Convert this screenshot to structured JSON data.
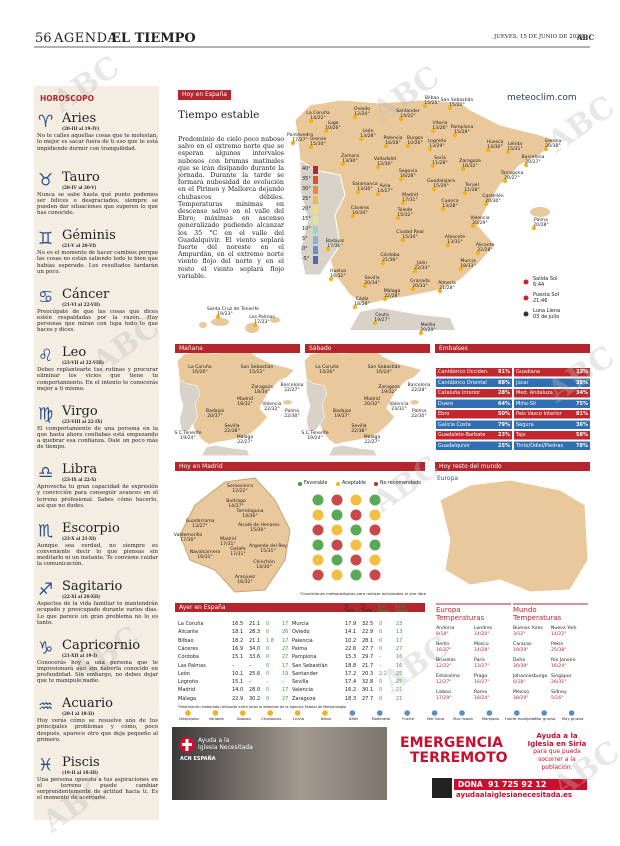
{
  "header": {
    "page": "56",
    "section": "AGENDA",
    "subsection": "EL TIEMPO",
    "date": "JUEVES, 15 DE JUNIO DE 2023",
    "brand": "ABC"
  },
  "watermark": "ABC",
  "horoscope": {
    "title": "HOROSCOPO",
    "signs": [
      {
        "name": "Aries",
        "dates": "(20-III al 19-IV)",
        "text": "No te calles aquellas cosas que te molestan, lo mejor es sacar fuera de ti eso que te está impidiendo dormir con tranquilidad."
      },
      {
        "name": "Tauro",
        "dates": "(20-IV al 20-V)",
        "text": "Nunca se sabe hasta qué punto podemos ser felices o desgraciados, siempre se pueden dar situaciones que superen lo que has conocido."
      },
      {
        "name": "Géminis",
        "dates": "(21-V al 20-VI)",
        "text": "No es el momento de hacer cambios porque las cosas no están saliendo todo lo bien que habías esperado. Los resultados tardarán un poco."
      },
      {
        "name": "Cáncer",
        "dates": "(21-VI al 22-VII)",
        "text": "Preocúpate de que las cosas que dices estén respaldadas por la razón. Hay personas que miran con lupa todo lo que haces y dices."
      },
      {
        "name": "Leo",
        "dates": "(23-VII al 22-VIII)",
        "text": "Debes replantearte tus rutinas y procurar eliminar los vicios que tiene tu comportamiento. En el intento te conocerás mejor a ti mismo."
      },
      {
        "name": "Virgo",
        "dates": "(23-VIII al 22-IX)",
        "text": "El comportamiento de una persona en la que hasta ahora confiabas está empezando a quebrar esa confianza. Dale un poco más de tiempo."
      },
      {
        "name": "Libra",
        "dates": "(23-IX al 22-X)",
        "text": "Aprovecha tu gran capacidad de expresión y convicción para conseguir avances en el terreno profesional. Sabes cómo hacerlo, así que no dudes."
      },
      {
        "name": "Escorpio",
        "dates": "(23-X al 21-XI)",
        "text": "Aunque sea verdad, no siempre es conveniente decir lo que piensas sin meditarlo ni un instante. Te conviene cuidar la comunicación."
      },
      {
        "name": "Sagitario",
        "dates": "(22-XI al 20-XII)",
        "text": "Aspectos de la vida familiar te mantendrán ocupado y preocupado durante varios días. Lo que parece un gran problema no lo es tanto."
      },
      {
        "name": "Capricornio",
        "dates": "(21-XII al 19-I)",
        "text": "Conocerás hoy a una persona que te impresionará aún sin haberla conocido en profundidad. Sin embargo, no debes dejar que te manipule nadie."
      },
      {
        "name": "Acuario",
        "dates": "(20-I al 18-II)",
        "text": "Hoy verás cómo se resuelve uno de tus principales problemas y cómo, poco después, aparece otro que deja pequeño al primero."
      },
      {
        "name": "Piscis",
        "dates": "(19-II al 18-III)",
        "text": "Una persona opuesta a tus aspiraciones en el terreno puede cambiar sorprendentemente de actitud hacia ti. Es el momento de acercarte."
      }
    ]
  },
  "today": {
    "tag": "Hoy en España",
    "headline": "Tiempo estable",
    "source": "meteoclim.com",
    "text": "Predominio de cielo poco nuboso salvo en el extremo norte que se esperan algunos intervalos nubosos con brumas matinales que se irán disipando durante la jornada. Durante la tarde se formará nubosidad de evolución en el Pirineo y Mallorca dejando chubascos débiles. Temperaturas mínimas en descenso salvo en el valle del Ebro; máximas en ascenso generalizado pudiendo alcanzar los 35 °C en el valle del Guadalquivir. El viento soplará fuerte del noreste en el Ampurdán, en el extremo norte viento flojo del norte y en el resto el viento soplará flojo variable.",
    "scale": [
      "40°",
      "35°",
      "30°",
      "25°",
      "20°",
      "15°",
      "10°",
      "5°",
      "0°",
      "-5°"
    ],
    "cities": [
      {
        "name": "La Coruña",
        "temp": "14/22°"
      },
      {
        "name": "Oviedo",
        "temp": "12/24°"
      },
      {
        "name": "Santander",
        "temp": "14/22°"
      },
      {
        "name": "Bilbao",
        "temp": "15/25°"
      },
      {
        "name": "San Sebastián",
        "temp": "15/22°"
      },
      {
        "name": "Lugo",
        "temp": "10/26°"
      },
      {
        "name": "Pontevedra",
        "temp": "17/27°"
      },
      {
        "name": "Orense",
        "temp": "15/30°"
      },
      {
        "name": "León",
        "temp": "13/28°"
      },
      {
        "name": "Burgos",
        "temp": "10/26°"
      },
      {
        "name": "Palencia",
        "temp": "16/28°"
      },
      {
        "name": "Logroño",
        "temp": "13/29°"
      },
      {
        "name": "Vitoria",
        "temp": "13/26°"
      },
      {
        "name": "Pamplona",
        "temp": "15/28°"
      },
      {
        "name": "Huesca",
        "temp": "14/30°"
      },
      {
        "name": "Lérida",
        "temp": "15/31°"
      },
      {
        "name": "Gerona",
        "temp": "20/30°"
      },
      {
        "name": "Barcelona",
        "temp": "20/27°"
      },
      {
        "name": "Zamora",
        "temp": "13/30°"
      },
      {
        "name": "Valladolid",
        "temp": "12/30°"
      },
      {
        "name": "Soria",
        "temp": "11/28°"
      },
      {
        "name": "Zaragoza",
        "temp": "16/32°"
      },
      {
        "name": "Tarragona",
        "temp": "20/27°"
      },
      {
        "name": "Salamanca",
        "temp": "13/30°"
      },
      {
        "name": "Segovia",
        "temp": "16/28°"
      },
      {
        "name": "Ávila",
        "temp": "14/27°"
      },
      {
        "name": "Guadalajara",
        "temp": "15/29°"
      },
      {
        "name": "Teruel",
        "temp": "11/28°"
      },
      {
        "name": "Castellón",
        "temp": "20/30°"
      },
      {
        "name": "Madrid",
        "temp": "17/31°"
      },
      {
        "name": "Cuenca",
        "temp": "13/28°"
      },
      {
        "name": "Cáceres",
        "temp": "16/34°"
      },
      {
        "name": "Toledo",
        "temp": "15/32°"
      },
      {
        "name": "Valencia",
        "temp": "20/29°"
      },
      {
        "name": "Palma",
        "temp": "20/28°"
      },
      {
        "name": "Badajoz",
        "temp": "17/36°"
      },
      {
        "name": "Ciudad Real",
        "temp": "15/34°"
      },
      {
        "name": "Albacete",
        "temp": "13/31°"
      },
      {
        "name": "Córdoba",
        "temp": "21/36°"
      },
      {
        "name": "Jaén",
        "temp": "22/33°"
      },
      {
        "name": "Alicante",
        "temp": "22/28°"
      },
      {
        "name": "Huelva",
        "temp": "16/32°"
      },
      {
        "name": "Sevilla",
        "temp": "20/34°"
      },
      {
        "name": "Murcia",
        "temp": "18/33°"
      },
      {
        "name": "Granada",
        "temp": "20/33°"
      },
      {
        "name": "Almería",
        "temp": "21/28°"
      },
      {
        "name": "Málaga",
        "temp": "22/28°"
      },
      {
        "name": "Cádiz",
        "temp": "18/28°"
      },
      {
        "name": "Ceuta",
        "temp": "19/27°"
      },
      {
        "name": "Melilla",
        "temp": "20/29°"
      },
      {
        "name": "Santa Cruz de Tenerife",
        "temp": "19/23°"
      },
      {
        "name": "Las Palmas",
        "temp": "17/23°"
      }
    ],
    "sun": {
      "sunrise_label": "Salida Sol",
      "sunrise": "6:44",
      "sunset_label": "Puesta Sol",
      "sunset": "21:46",
      "moon_label": "Luna Llena",
      "moon": "03 de julio"
    }
  },
  "tomorrow": {
    "tag": "Mañana",
    "cities": [
      {
        "name": "La Coruña",
        "temp": "16/26°"
      },
      {
        "name": "San Sebastián",
        "temp": "15/22°"
      },
      {
        "name": "Zaragoza",
        "temp": "18/34°"
      },
      {
        "name": "Barcelona",
        "temp": "22/27°"
      },
      {
        "name": "Madrid",
        "temp": "18/32°"
      },
      {
        "name": "Valencia",
        "temp": "22/32°"
      },
      {
        "name": "Badajoz",
        "temp": "20/37°"
      },
      {
        "name": "Sevilla",
        "temp": "22/38°"
      },
      {
        "name": "Málaga",
        "temp": "22/27°"
      },
      {
        "name": "S.C.Tenerife",
        "temp": "19/24°"
      },
      {
        "name": "Palma",
        "temp": "22/30°"
      }
    ]
  },
  "saturday": {
    "tag": "Sábado",
    "cities": [
      {
        "name": "La Coruña",
        "temp": "14/26°"
      },
      {
        "name": "San Sebastián",
        "temp": "16/24°"
      },
      {
        "name": "Zaragoza",
        "temp": "19/32°"
      },
      {
        "name": "Barcelona",
        "temp": "22/28°"
      },
      {
        "name": "Madrid",
        "temp": "20/32°"
      },
      {
        "name": "Valencia",
        "temp": "23/31°"
      },
      {
        "name": "Badajoz",
        "temp": "19/37°"
      },
      {
        "name": "Sevilla",
        "temp": "22/38°"
      },
      {
        "name": "Málaga",
        "temp": "22/27°"
      },
      {
        "name": "S.C.Tenerife",
        "temp": "19/24°"
      },
      {
        "name": "Palma",
        "temp": "22/30°"
      }
    ]
  },
  "reservoirs": {
    "tag": "Embalses",
    "items": [
      {
        "name": "Cantábrico Occiden.",
        "level": "91%"
      },
      {
        "name": "Cantábrico Oriental",
        "level": "88%"
      },
      {
        "name": "Cataluña Interior",
        "level": "28%"
      },
      {
        "name": "Duero",
        "level": "64%"
      },
      {
        "name": "Ebro",
        "level": "50%"
      },
      {
        "name": "Galicia Costa",
        "level": "79%"
      },
      {
        "name": "Guadalete-Barbate",
        "level": "23%"
      },
      {
        "name": "Guadalquivir",
        "level": "25%"
      },
      {
        "name": "Guadiana",
        "level": "33%"
      },
      {
        "name": "Júcar",
        "level": "38%"
      },
      {
        "name": "Med. Andaluza",
        "level": "34%"
      },
      {
        "name": "Miño-Sil",
        "level": "75%"
      },
      {
        "name": "País Vasco Interior",
        "level": "81%"
      },
      {
        "name": "Segura",
        "level": "36%"
      },
      {
        "name": "Tajo",
        "level": "58%"
      },
      {
        "name": "Tinto/Odiel/Piedras",
        "level": "78%"
      }
    ]
  },
  "madrid": {
    "tag": "Hoy en Madrid",
    "legend": [
      "Favorable",
      "Aceptable",
      "No recomendado"
    ],
    "note": "*Condiciones meteorológicas para realizar actividades al aire libre",
    "cities": [
      {
        "name": "Somosierra",
        "temp": "12/22°"
      },
      {
        "name": "Buitrago",
        "temp": "14/27°"
      },
      {
        "name": "Torrelaguna",
        "temp": "14/30°"
      },
      {
        "name": "Guadarrama",
        "temp": "13/27°"
      },
      {
        "name": "Alcalá de Henares",
        "temp": "15/30°"
      },
      {
        "name": "Valdemorillo",
        "temp": "17/30°"
      },
      {
        "name": "Madrid",
        "temp": "17/31°"
      },
      {
        "name": "Navalcarnero",
        "temp": "16/31°"
      },
      {
        "name": "Getafe",
        "temp": "17/31°"
      },
      {
        "name": "Arganda del Rey",
        "temp": "15/31°"
      },
      {
        "name": "Chinchón",
        "temp": "14/30°"
      },
      {
        "name": "Aranjuez",
        "temp": "16/32°"
      }
    ]
  },
  "world": {
    "tag": "Hoy resto del mundo",
    "region": "Europa"
  },
  "yesterday": {
    "tag": "Ayer en España",
    "columns": [
      "°C Tmín",
      "°C Tmáx",
      "l/m² Lluvia",
      "km/h Viento"
    ],
    "rows": [
      [
        "La Coruña",
        "16.5",
        "21.1",
        "0",
        "17"
      ],
      [
        "Alicante",
        "18.1",
        "28.3",
        "0",
        "26"
      ],
      [
        "Bilbao",
        "18.2",
        "21.1",
        "1.8",
        "17"
      ],
      [
        "Cáceres",
        "16.9",
        "34.0",
        "0",
        "27"
      ],
      [
        "Córdoba",
        "15.1",
        "33.6",
        "0",
        "27"
      ],
      [
        "Las Palmas",
        "–",
        "–",
        "0",
        "17"
      ],
      [
        "León",
        "10.1",
        "25.6",
        "0",
        "19"
      ],
      [
        "Logroño",
        "15.1",
        "–",
        "–",
        "–"
      ],
      [
        "Madrid",
        "14.0",
        "28.0",
        "0",
        "17"
      ],
      [
        "Málaga",
        "22.9",
        "30.2",
        "0",
        "27"
      ],
      [
        "Murcia",
        "17.9",
        "32.5",
        "0",
        "23"
      ],
      [
        "Oviedo",
        "14.1",
        "22.9",
        "0",
        "13"
      ],
      [
        "Palencia",
        "10.2",
        "28.1",
        "0",
        "17"
      ],
      [
        "Palma",
        "22.6",
        "27.7",
        "0",
        "27"
      ],
      [
        "Pamplona",
        "15.3",
        "29.7",
        "–",
        "16"
      ],
      [
        "San Sebastián",
        "18.8",
        "21.7",
        "–",
        "16"
      ],
      [
        "Santander",
        "17.2",
        "20.3",
        "2.2",
        "25"
      ],
      [
        "Sevilla",
        "17.4",
        "32.8",
        "0",
        "25"
      ],
      [
        "Valencia",
        "16.2",
        "30.1",
        "0",
        "21"
      ],
      [
        "Zaragoza",
        "18.3",
        "27.7",
        "0",
        "21"
      ]
    ],
    "note": "*Información elaborada utilizando entre otras la obtenida de la Agencia Estatal de Meteorología"
  },
  "europe": {
    "title": "Europa",
    "subtitle": "Temperaturas",
    "rows": [
      [
        "Andorra",
        "8/18°",
        "Londres",
        "14/20°"
      ],
      [
        "Berlín",
        "16/27°",
        "Moscú",
        "14/28°"
      ],
      [
        "Bruselas",
        "12/22°",
        "París",
        "13/27°"
      ],
      [
        "Estocolmo",
        "12/27°",
        "Praga",
        "16/27°"
      ],
      [
        "Lisboa",
        "17/29°",
        "Roma",
        "18/24°"
      ]
    ]
  },
  "world_temps": {
    "title": "Mundo",
    "subtitle": "Temperaturas",
    "rows": [
      [
        "Buenos Aires",
        "3/12°",
        "Nueva York",
        "14/22°"
      ],
      [
        "Caracas",
        "19/29°",
        "Pekín",
        "25/38°"
      ],
      [
        "Doha",
        "30/39°",
        "Río Janeiro",
        "16/24°"
      ],
      [
        "Johannesburgo",
        "6/18°",
        "Singapur",
        "26/31°"
      ],
      [
        "México",
        "18/29°",
        "Sidney",
        "5/16°"
      ]
    ]
  },
  "icons": [
    "Despejado",
    "Variable",
    "Nuboso",
    "Chubascos",
    "Lluvia",
    "Nieve",
    "Débil",
    "Moderado",
    "Fuerte",
    "Mar llana",
    "Mar rizada",
    "Marejada",
    "Fuerte marejada",
    "Mar gruesa",
    "Muy gruesa"
  ],
  "ad": {
    "org1": "Ayuda a la",
    "org2": "Iglesia Necesitada",
    "org3": "ACN ESPAÑA",
    "headline1": "EMERGENCIA",
    "headline2": "TERREMOTO",
    "pitch1": "Ayuda a la",
    "pitch2": "Iglesia en Siria",
    "pitch3": "para que pueda",
    "pitch4": "socorrer a la",
    "pitch5": "población.",
    "dona": "DONA",
    "phone": "91 725 92 12",
    "web": "ayudaalaiglesianecesitada.es"
  }
}
